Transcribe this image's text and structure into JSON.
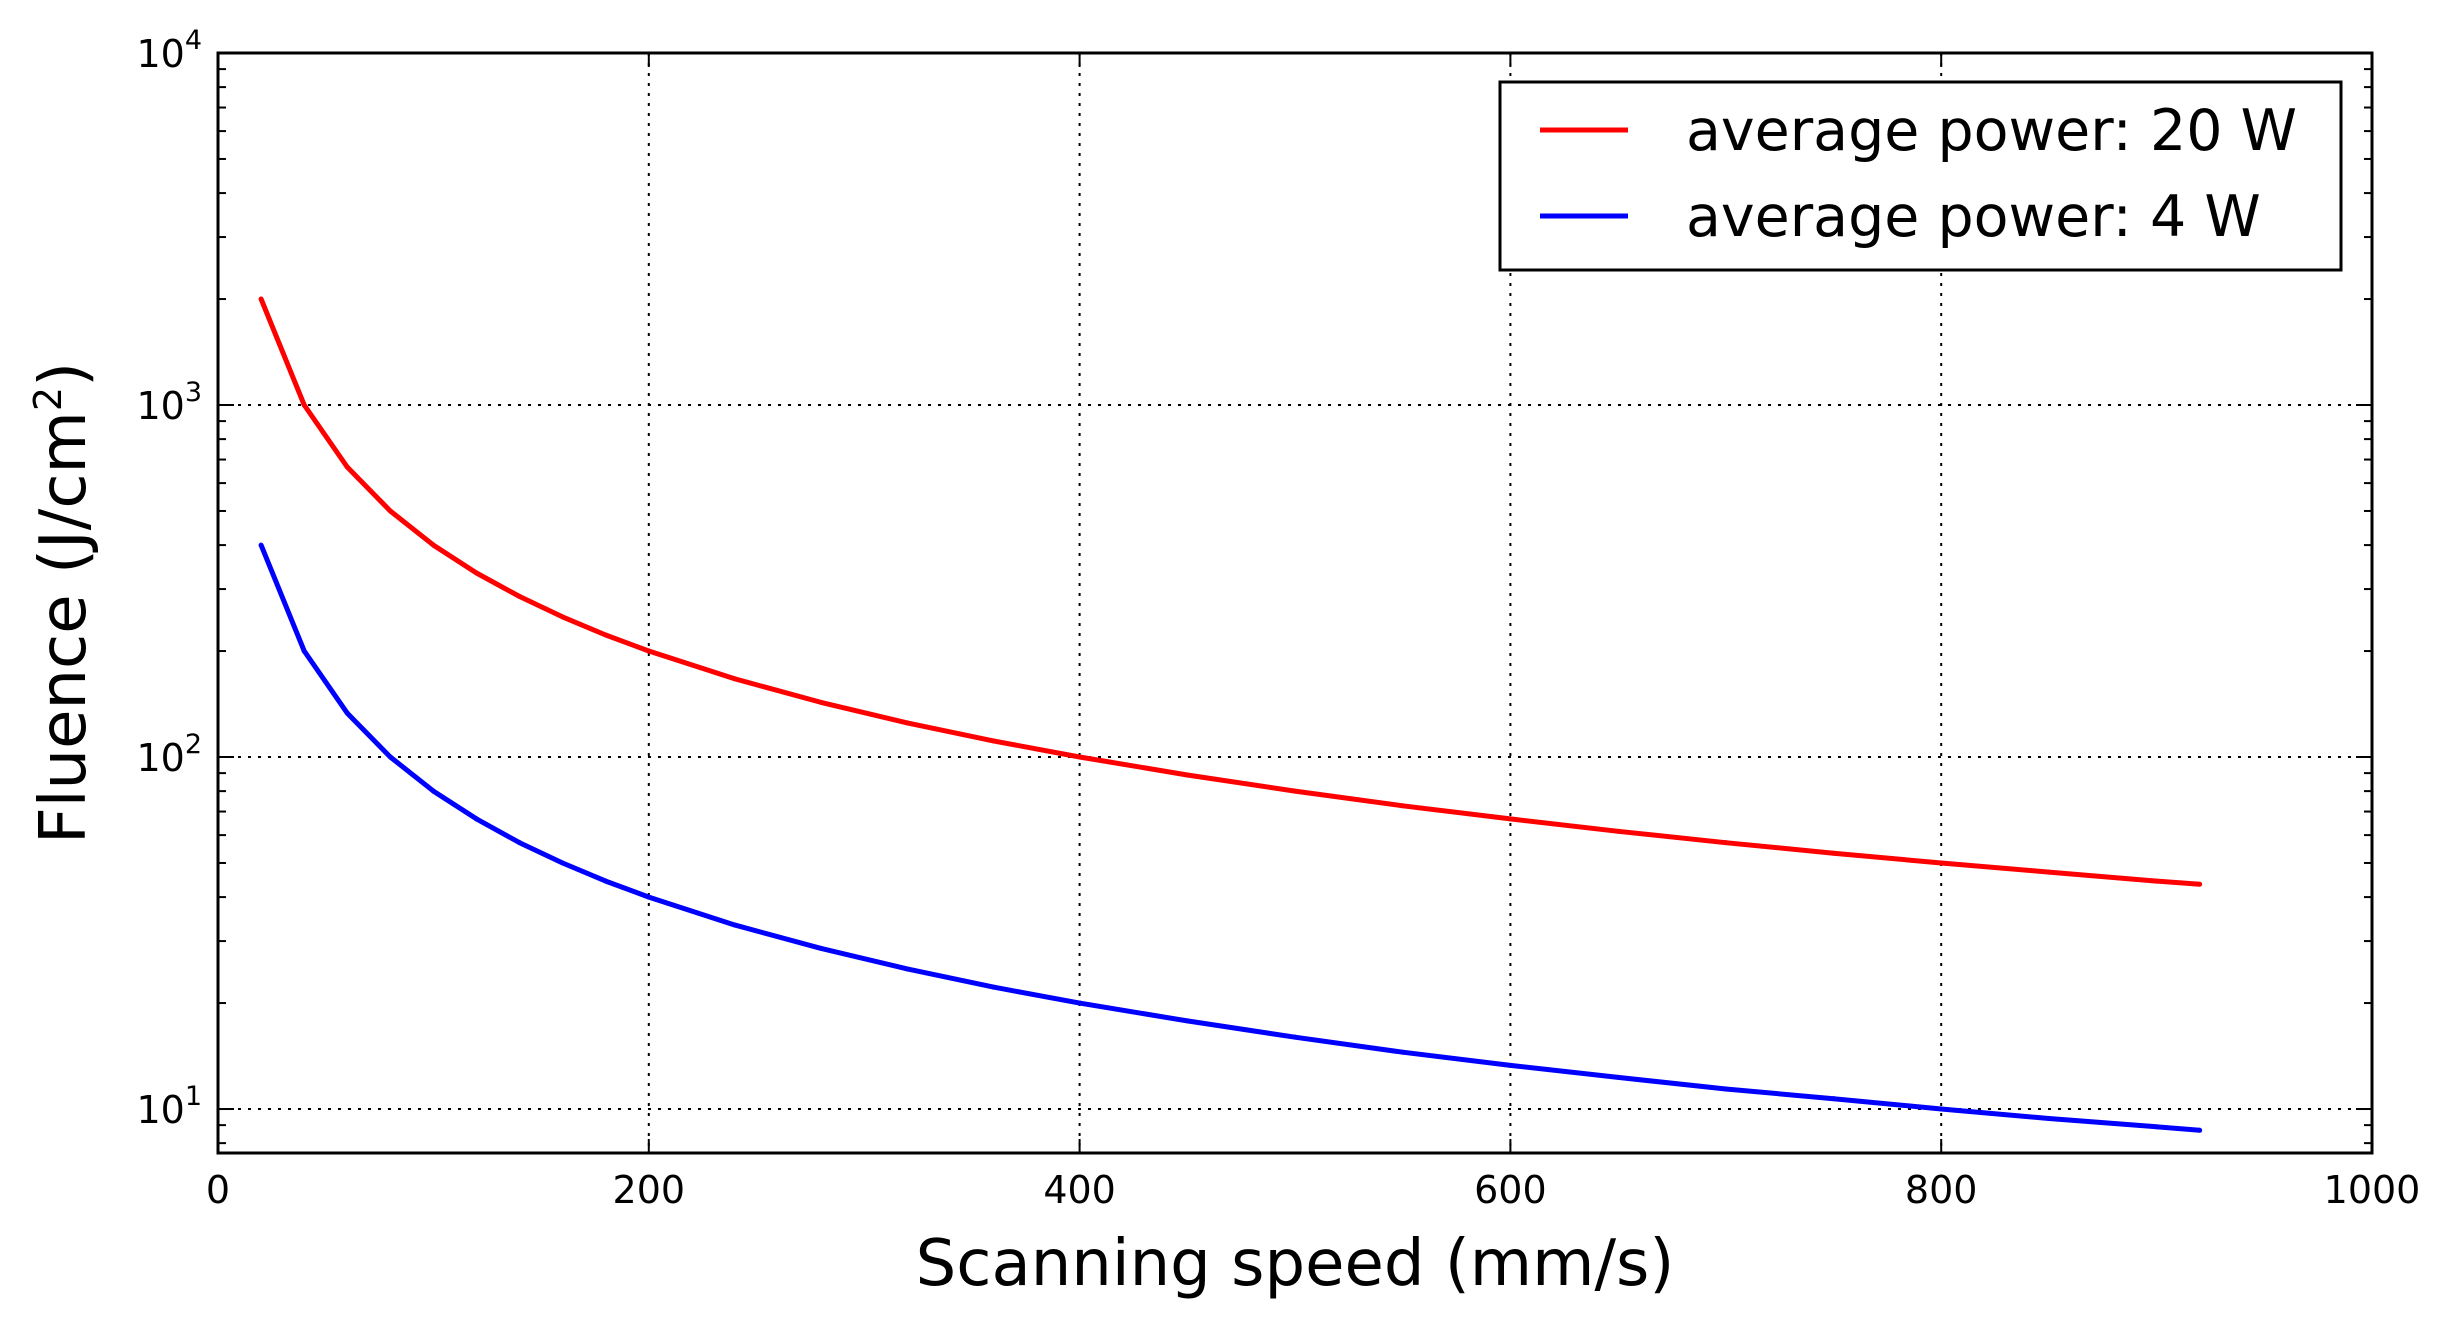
{
  "chart_data": {
    "type": "line",
    "title": "",
    "xlabel": "Scanning speed (mm/s)",
    "ylabel": {
      "base": "Fluence (J/cm",
      "superscript": "2",
      "close": ")"
    },
    "xlim": [
      0,
      1000
    ],
    "ylim": [
      7.5,
      10000
    ],
    "yscale": "log",
    "grid": true,
    "legend_position": "top-right",
    "x_ticks": [
      "0",
      "200",
      "400",
      "600",
      "800",
      "1000"
    ],
    "y_ticks": [
      {
        "base": "10",
        "exp": "1",
        "value": 10
      },
      {
        "base": "10",
        "exp": "2",
        "value": 100
      },
      {
        "base": "10",
        "exp": "3",
        "value": 1000
      },
      {
        "base": "10",
        "exp": "4",
        "value": 10000
      }
    ],
    "series": [
      {
        "name": "average power: 20 W",
        "color": "#ff0000",
        "x": [
          20,
          40,
          60,
          80,
          100,
          120,
          140,
          160,
          180,
          200,
          240,
          280,
          320,
          360,
          400,
          450,
          500,
          550,
          600,
          650,
          700,
          750,
          800,
          850,
          900,
          920
        ],
        "y": [
          2000,
          1000,
          666.7,
          500,
          400,
          333.3,
          285.7,
          250,
          222.2,
          200,
          166.7,
          142.9,
          125,
          111.1,
          100,
          88.9,
          80,
          72.7,
          66.7,
          61.5,
          57.1,
          53.3,
          50,
          47.1,
          44.4,
          43.5
        ]
      },
      {
        "name": "average power: 4 W",
        "color": "#0000ff",
        "x": [
          20,
          40,
          60,
          80,
          100,
          120,
          140,
          160,
          180,
          200,
          240,
          280,
          320,
          360,
          400,
          450,
          500,
          550,
          600,
          650,
          700,
          750,
          800,
          850,
          900,
          920
        ],
        "y": [
          400,
          200,
          133.3,
          100,
          80,
          66.7,
          57.1,
          50,
          44.4,
          40,
          33.3,
          28.6,
          25,
          22.2,
          20,
          17.8,
          16,
          14.5,
          13.3,
          12.3,
          11.4,
          10.7,
          10,
          9.4,
          8.9,
          8.7
        ]
      }
    ]
  }
}
